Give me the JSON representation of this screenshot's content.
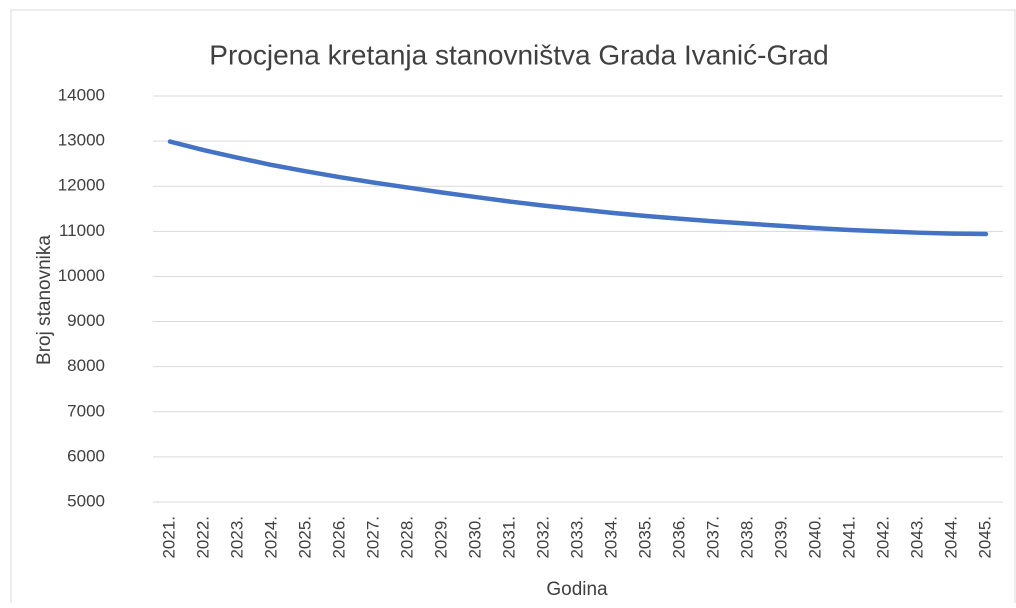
{
  "chart_data": {
    "type": "line",
    "title": "Procjena kretanja stanovništva Grada Ivanić-Grad",
    "x_label": "Godina",
    "y_label": "Broj stanovnika",
    "categories": [
      "2021.",
      "2022.",
      "2023.",
      "2024.",
      "2025.",
      "2026.",
      "2027.",
      "2028.",
      "2029.",
      "2030.",
      "2031.",
      "2032.",
      "2033.",
      "2034.",
      "2035.",
      "2036.",
      "2037.",
      "2038.",
      "2039.",
      "2040.",
      "2041.",
      "2042.",
      "2043.",
      "2044.",
      "2045."
    ],
    "series": [
      {
        "name": "Broj stanovnika",
        "color": "#4472c4",
        "values": [
          12990,
          12800,
          12630,
          12470,
          12330,
          12200,
          12080,
          11970,
          11860,
          11760,
          11660,
          11570,
          11490,
          11410,
          11340,
          11280,
          11220,
          11170,
          11120,
          11070,
          11030,
          11000,
          10970,
          10950,
          10940
        ]
      }
    ],
    "ylim": [
      5000,
      14000
    ],
    "yticks": [
      5000,
      6000,
      7000,
      8000,
      9000,
      10000,
      11000,
      12000,
      13000,
      14000
    ],
    "grid": true
  }
}
